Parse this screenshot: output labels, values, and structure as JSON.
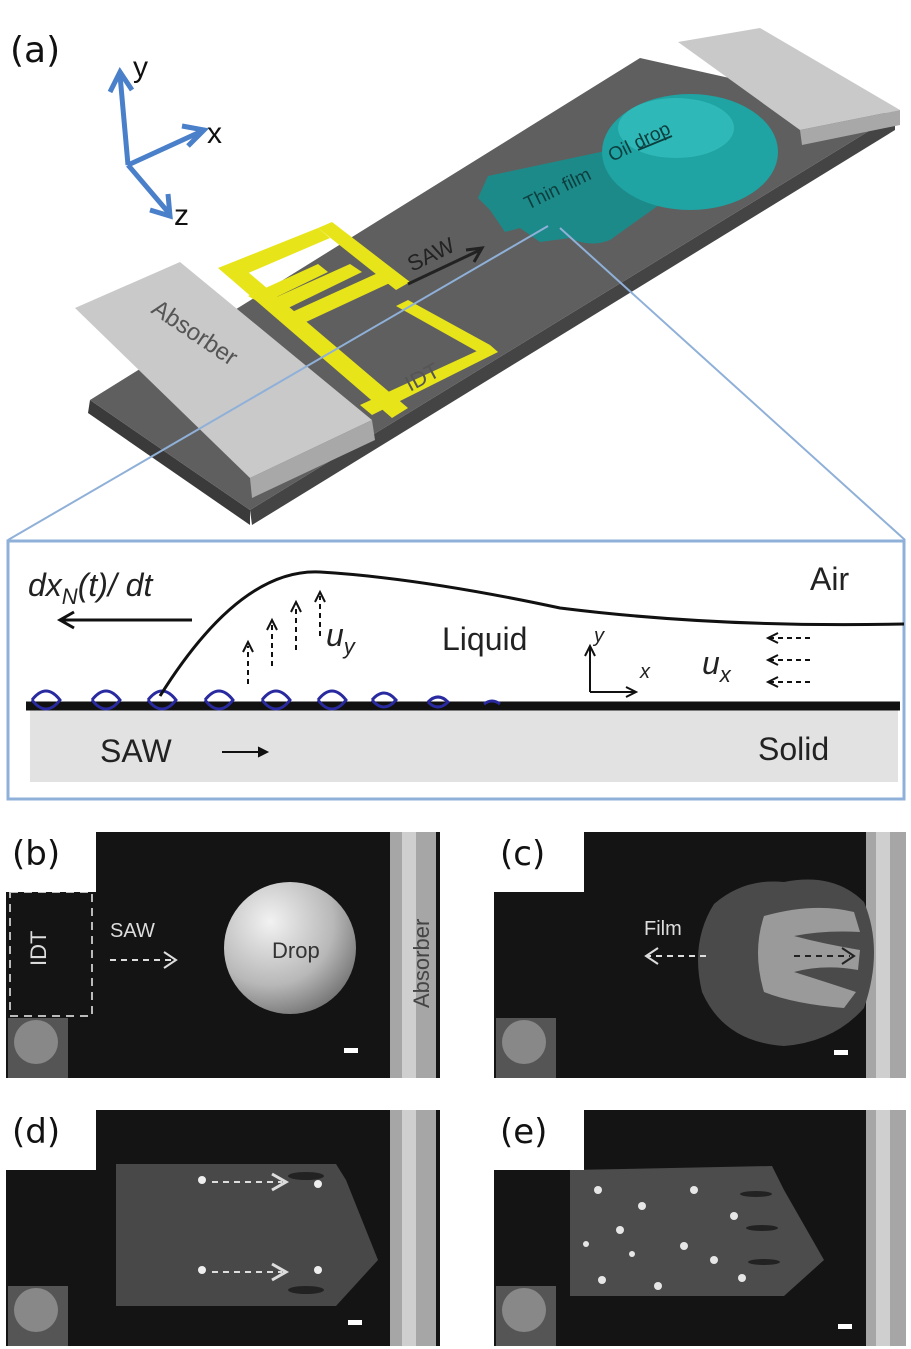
{
  "panels": {
    "a": "(a)",
    "b": "(b)",
    "c": "(c)",
    "d": "(d)",
    "e": "(e)"
  },
  "axes3d": {
    "x": "x",
    "y": "y",
    "z": "z"
  },
  "device": {
    "absorber": "Absorber",
    "idt": "IDT",
    "saw": "SAW",
    "film": "Thin film",
    "drop": "Oil drop"
  },
  "inset": {
    "velocity": "dx",
    "velocity_sub": "N",
    "velocity_tail": "(t)/ dt",
    "air": "Air",
    "liquid": "Liquid",
    "solid": "Solid",
    "saw": "SAW",
    "uy": "u",
    "uy_sub": "y",
    "ux": "u",
    "ux_sub": "x",
    "axis_x": "x",
    "axis_y": "y"
  },
  "micro_b": {
    "idt": "IDT",
    "saw": "SAW",
    "drop": "Drop",
    "absorber": "Absorber"
  },
  "micro_c": {
    "film": "Film"
  },
  "colors": {
    "substrate": "#5f5f5f",
    "absorber": "#c9c9c9",
    "idt": "#e8e41a",
    "oil": "#1a8f8f",
    "inset_frame": "#8fb0d8",
    "axis_blue": "#4a7fc9",
    "wave_blue": "#2a2aa0"
  }
}
